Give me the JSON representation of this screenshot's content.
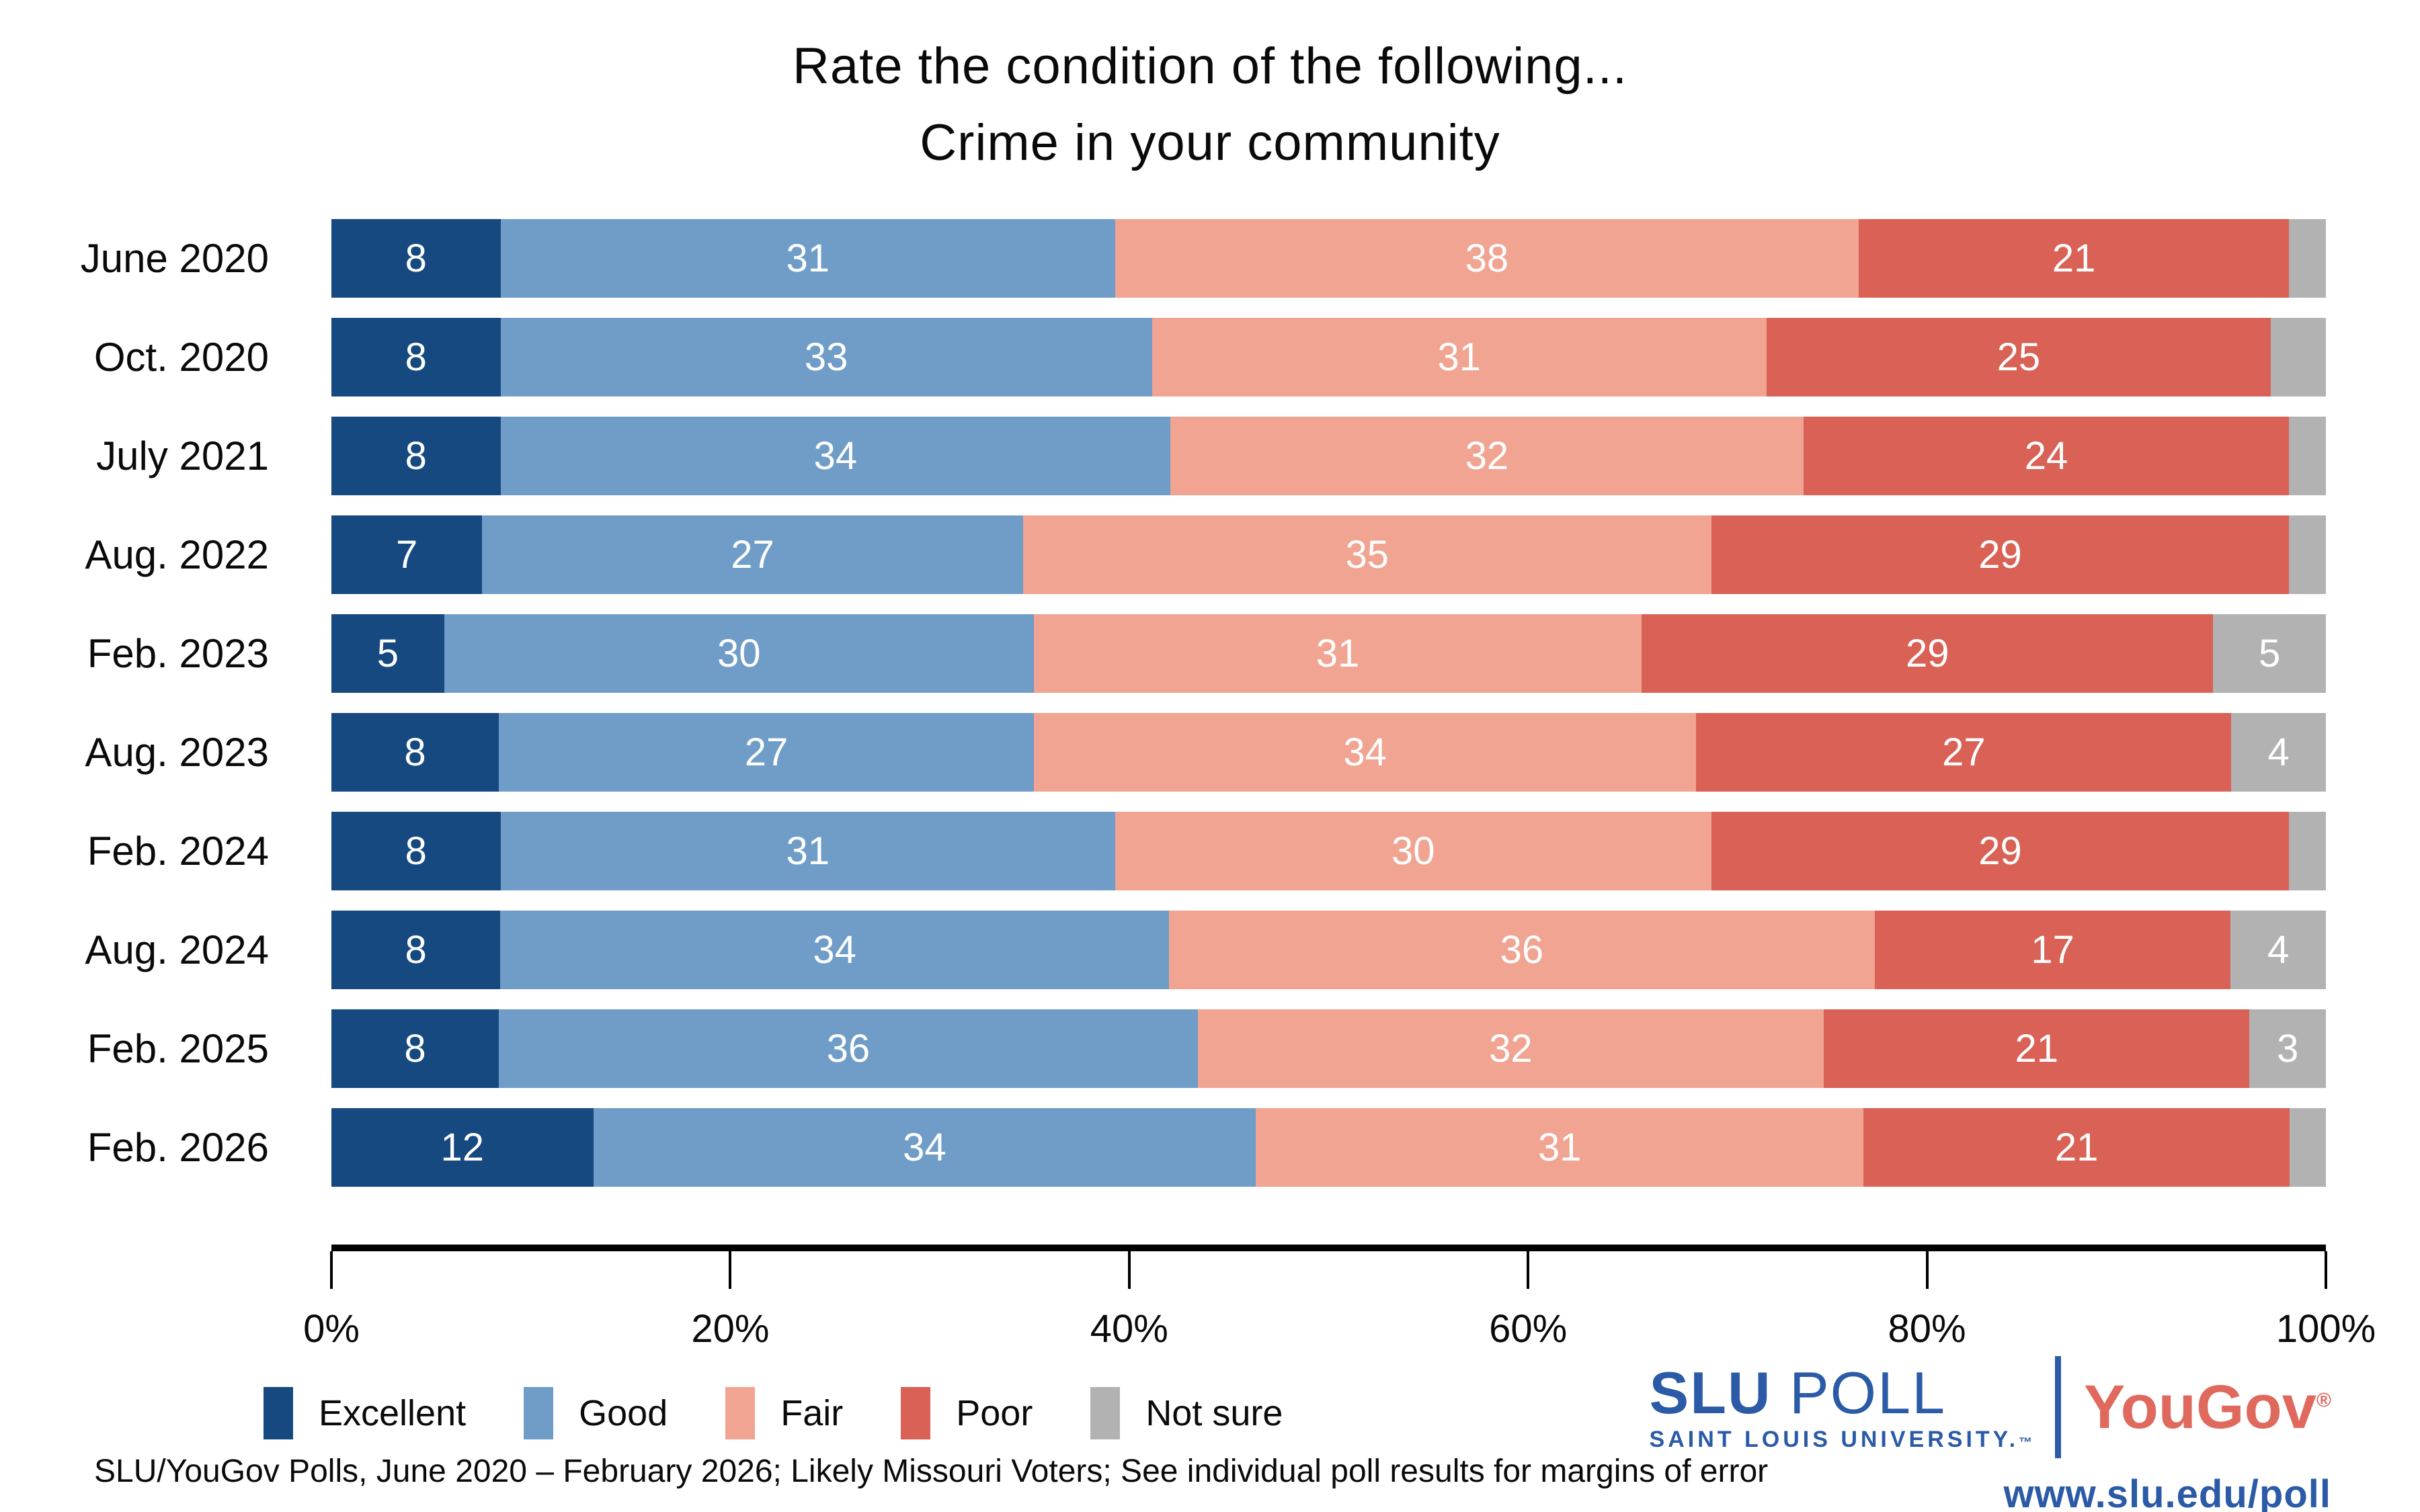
{
  "title": {
    "line1": "Rate the condition of the following...",
    "line2": "Crime in your community"
  },
  "chart_data": {
    "type": "bar",
    "variant": "horizontal-stacked-100",
    "title": "Rate the condition of the following... Crime in your community",
    "categories": [
      "June 2020",
      "Oct. 2020",
      "July 2021",
      "Aug. 2022",
      "Feb. 2023",
      "Aug. 2023",
      "Feb. 2024",
      "Aug. 2024",
      "Feb. 2025",
      "Feb. 2026"
    ],
    "series": [
      {
        "name": "Excellent",
        "color": "#15497f",
        "values": [
          8,
          8,
          8,
          7,
          5,
          8,
          8,
          8,
          8,
          12
        ],
        "show_labels": [
          true,
          true,
          true,
          true,
          true,
          true,
          true,
          true,
          true,
          true
        ]
      },
      {
        "name": "Good",
        "color": "#6f9dc7",
        "values": [
          31,
          33,
          34,
          27,
          30,
          27,
          31,
          34,
          36,
          34
        ],
        "show_labels": [
          true,
          true,
          true,
          true,
          true,
          true,
          true,
          true,
          true,
          true
        ]
      },
      {
        "name": "Fair",
        "color": "#f0a491",
        "values": [
          38,
          31,
          32,
          35,
          31,
          34,
          30,
          36,
          32,
          31
        ],
        "show_labels": [
          true,
          true,
          true,
          true,
          true,
          true,
          true,
          true,
          true,
          true
        ]
      },
      {
        "name": "Poor",
        "color": "#d96155",
        "values": [
          21,
          25,
          24,
          29,
          29,
          27,
          29,
          17,
          21,
          21
        ],
        "show_labels": [
          true,
          true,
          true,
          true,
          true,
          true,
          true,
          true,
          true,
          true
        ]
      },
      {
        "name": "Not sure",
        "color": "#b2b2b2",
        "values": [
          2,
          3,
          2,
          2,
          5,
          4,
          2,
          4,
          3,
          2
        ],
        "show_labels": [
          false,
          false,
          false,
          false,
          true,
          true,
          false,
          true,
          true,
          false
        ]
      }
    ],
    "xlim": [
      0,
      100
    ],
    "x_ticks": [
      "0%",
      "20%",
      "40%",
      "60%",
      "80%",
      "100%"
    ],
    "grid": false,
    "legend_position": "bottom-left",
    "value_label_color": "#ffffff"
  },
  "footer": {
    "source_note": "SLU/YouGov Polls, June 2020 – February 2026; Likely Missouri Voters; See individual poll results for margins of error"
  },
  "branding": {
    "slu_word": "SLU",
    "poll_word": " POLL",
    "university_line": "SAINT LOUIS UNIVERSITY.",
    "trademark": "™",
    "yougov": "YouGov",
    "registered": "®",
    "url": "www.slu.edu/poll",
    "slu_blue": "#2b5aa7",
    "yougov_red": "#e0695e"
  }
}
